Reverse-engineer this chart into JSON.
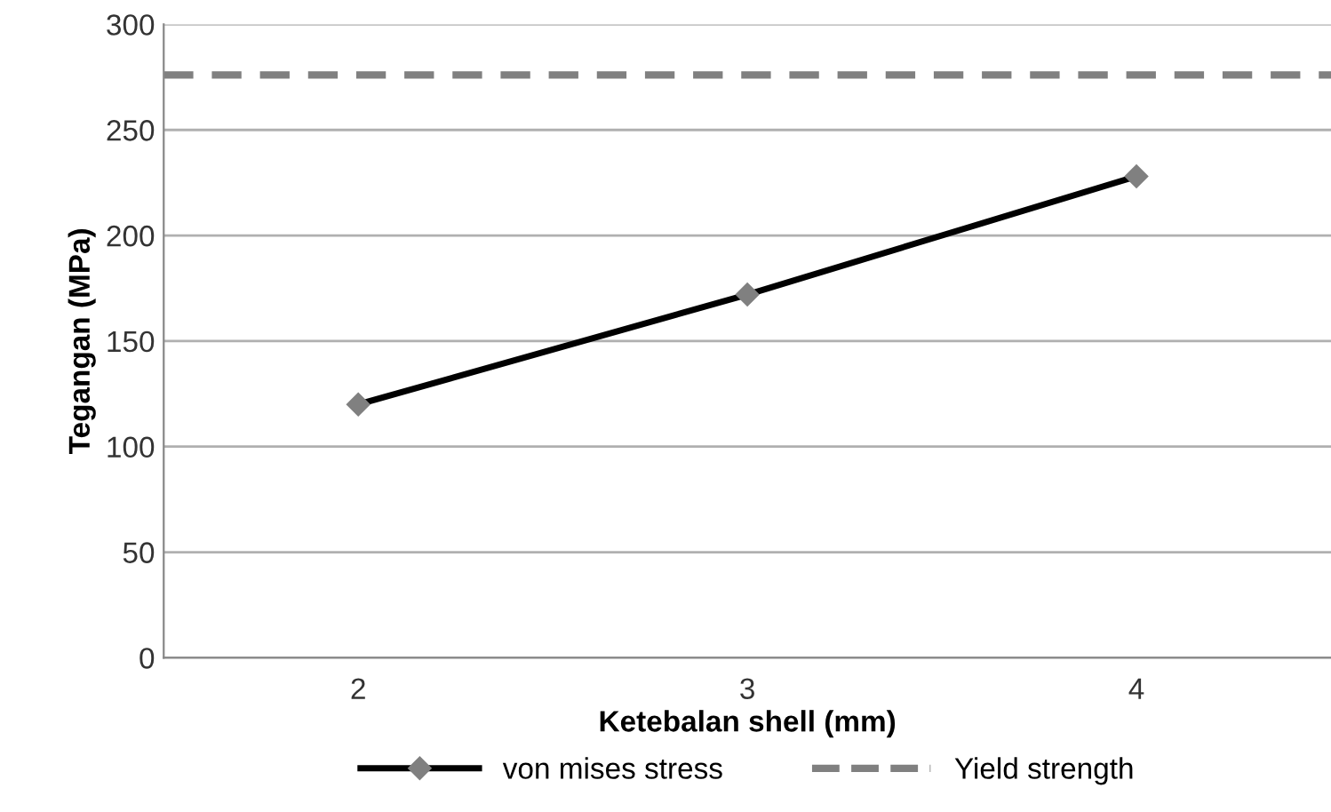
{
  "chart_data": {
    "type": "line",
    "xlabel": "Ketebalan shell (mm)",
    "ylabel": "Tegangan (MPa)",
    "categories": [
      "2",
      "3",
      "4"
    ],
    "series": [
      {
        "name": "von mises stress",
        "color": "#000000",
        "values": [
          120,
          172,
          228
        ]
      }
    ],
    "ref_lines": [
      {
        "axis": "y",
        "value": 276,
        "label": "Yield strength",
        "color": "#808080",
        "line_style": "dashed"
      }
    ],
    "ylim": [
      0,
      300
    ],
    "yticks": [
      0,
      50,
      100,
      150,
      200,
      250,
      300
    ],
    "grid": "y",
    "legend": "bottom",
    "marker": "diamond",
    "line_style": "solid"
  }
}
